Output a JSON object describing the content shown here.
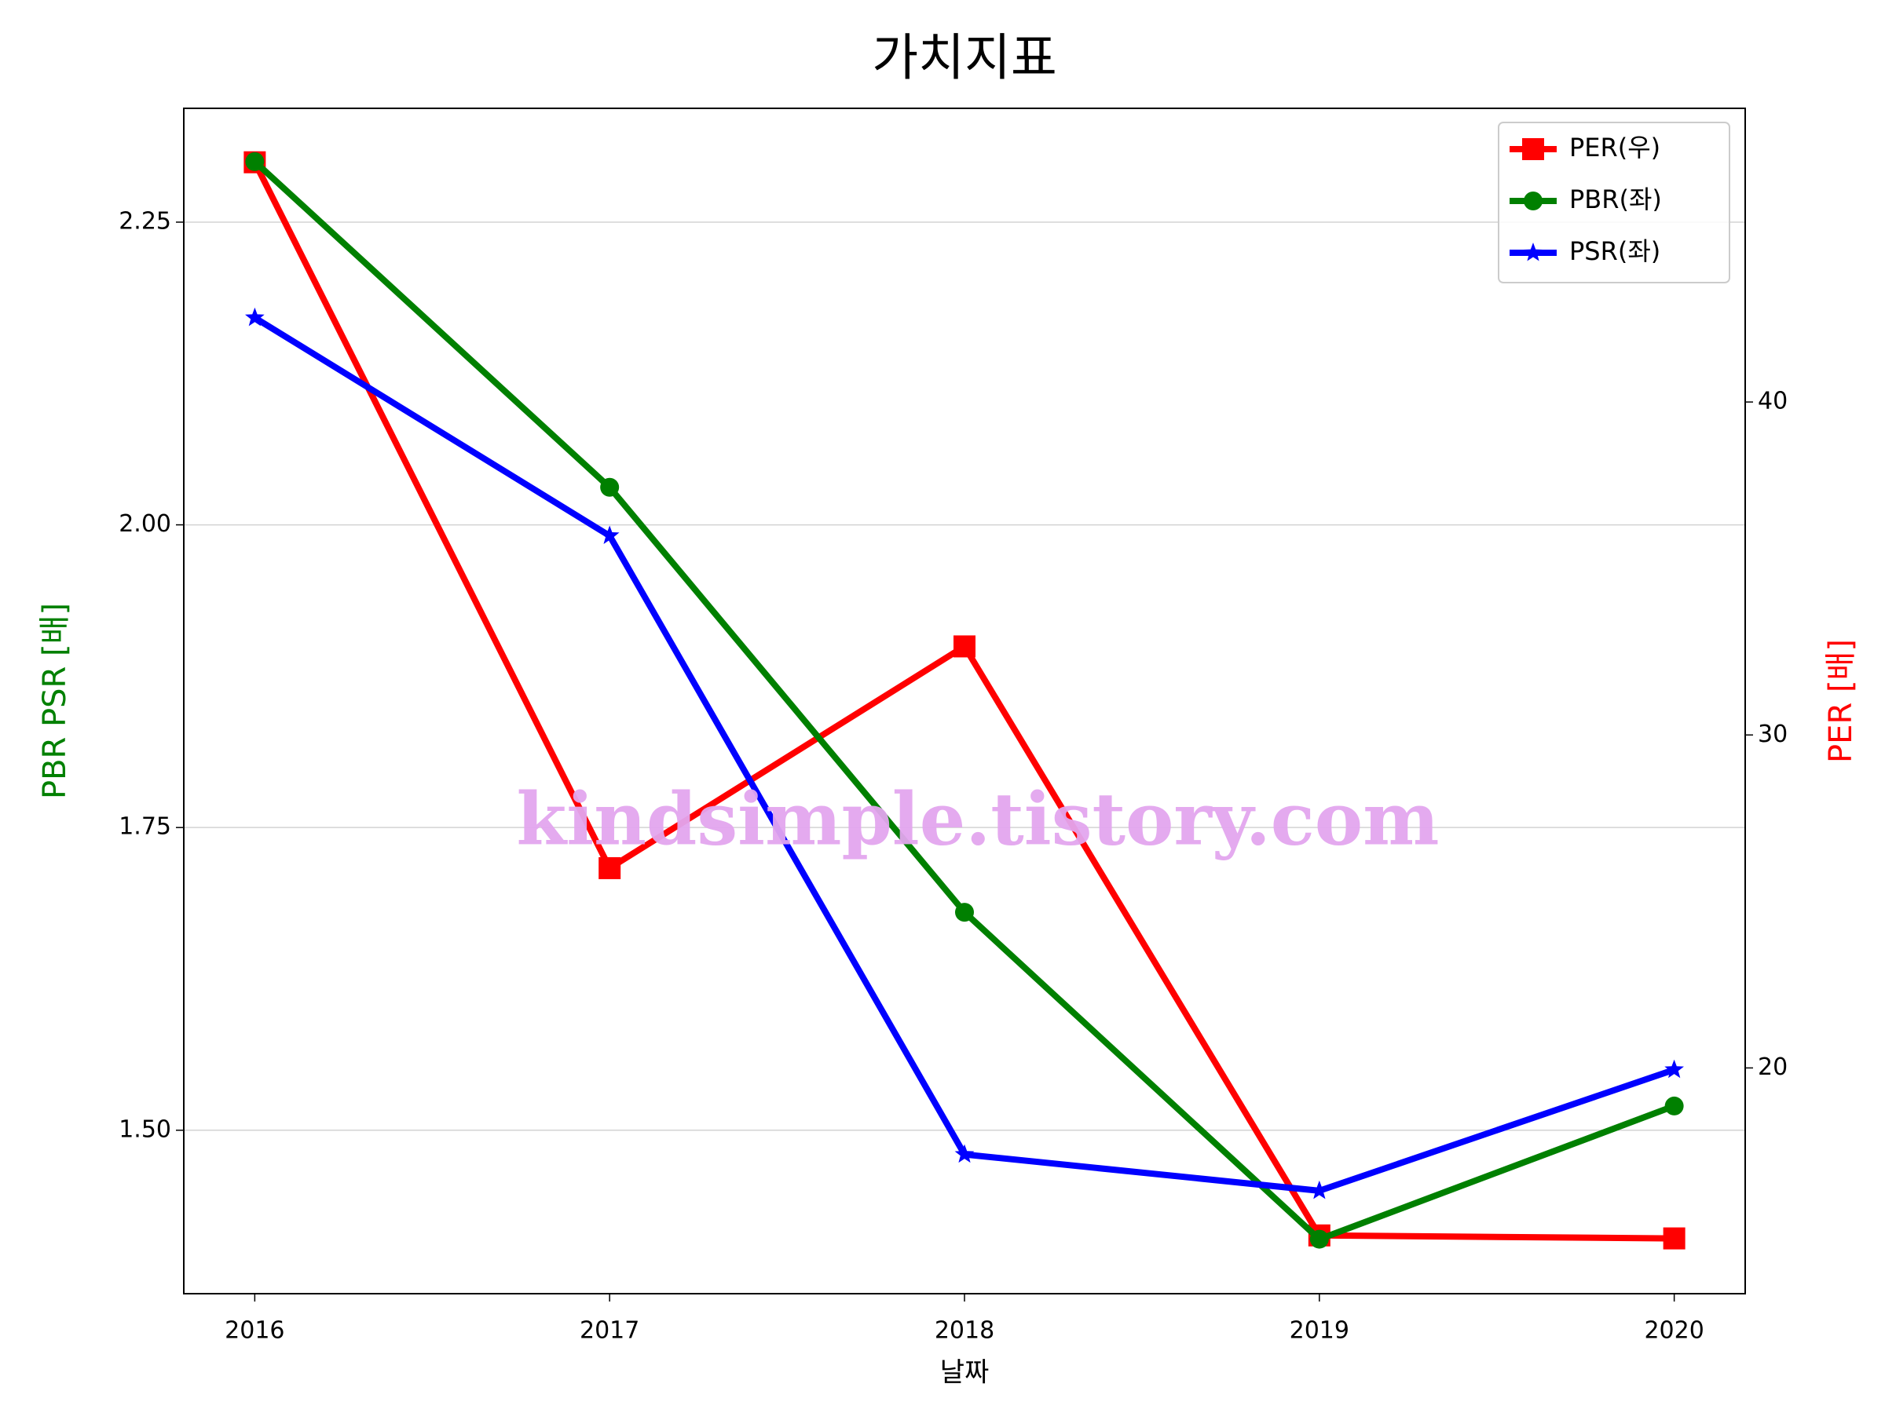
{
  "chart_data": {
    "type": "line",
    "title": "가치지표",
    "xlabel": "날짜",
    "ylabel": "PBR PSR [배]",
    "y2label": "PER [배]",
    "ylabel_color": "#008000",
    "y2label_color": "#ff0000",
    "x": [
      2016,
      2017,
      2018,
      2019,
      2020
    ],
    "xlim": [
      2015.8,
      2020.2
    ],
    "xticks": [
      2016,
      2017,
      2018,
      2019,
      2020
    ],
    "ylim": [
      1.365,
      2.344
    ],
    "yticks": [
      {
        "value": 1.5,
        "label": "1.50"
      },
      {
        "value": 1.75,
        "label": "1.75"
      },
      {
        "value": 2.0,
        "label": "2.00"
      },
      {
        "value": 2.25,
        "label": "2.25"
      }
    ],
    "y2lim": [
      13.22,
      48.82
    ],
    "y2ticks": [
      20,
      30,
      40
    ],
    "grid": true,
    "legend": "upper right",
    "series": [
      {
        "name": "PER(우)",
        "color": "#ff0000",
        "marker": "square",
        "axis": "y2",
        "values": [
          47.2,
          26.0,
          32.66,
          14.97,
          14.88
        ]
      },
      {
        "name": "PBR(좌)",
        "color": "#008000",
        "marker": "circle",
        "values": [
          2.3,
          2.031,
          1.68,
          1.41,
          1.52
        ]
      },
      {
        "name": "PSR(좌)",
        "color": "#0000ff",
        "marker": "star",
        "values": [
          2.171,
          1.991,
          1.48,
          1.45,
          1.55
        ]
      }
    ],
    "watermark": "kindsimple.tistory.com"
  }
}
